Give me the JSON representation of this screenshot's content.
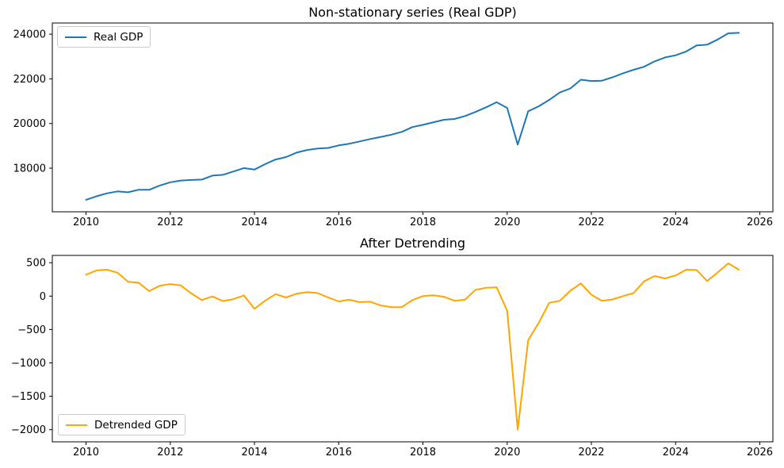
{
  "figure": {
    "background": "#ffffff",
    "axis_color": "#000000",
    "tick_label_color": "#000000"
  },
  "chart_data": [
    {
      "id": "real-gdp",
      "type": "line",
      "title": "Non-stationary series (Real GDP)",
      "legend": {
        "label": "Real GDP",
        "position": "top-left"
      },
      "color": "#1f77b4",
      "x_unit": "year (quarterly points)",
      "x_start": 2010.0,
      "x_step": 0.25,
      "xlim": [
        2009.2,
        2026.31
      ],
      "ylim": [
        16046,
        24500
      ],
      "x_ticks": [
        2010,
        2012,
        2014,
        2016,
        2018,
        2020,
        2022,
        2024,
        2026
      ],
      "y_ticks": [
        18000,
        20000,
        22000,
        24000
      ],
      "grid": false,
      "values": [
        16583,
        16743,
        16872,
        16960,
        16920,
        17035,
        17031,
        17222,
        17367,
        17444,
        17470,
        17489,
        17666,
        17700,
        17850,
        18004,
        17937,
        18178,
        18388,
        18497,
        18697,
        18813,
        18876,
        18906,
        19019,
        19094,
        19197,
        19305,
        19398,
        19499,
        19627,
        19838,
        19938,
        20055,
        20166,
        20201,
        20334,
        20518,
        20725,
        20951,
        20694,
        19056,
        20548,
        20771,
        21058,
        21389,
        21571,
        21960,
        21903,
        21919,
        22066,
        22249,
        22403,
        22539,
        22781,
        22960,
        23054,
        23224,
        23500,
        23530,
        23760,
        24040,
        24060
      ]
    },
    {
      "id": "detrended-gdp",
      "type": "line",
      "title": "After Detrending",
      "legend": {
        "label": "Detrended GDP",
        "position": "bottom-left"
      },
      "color": "#ffa500",
      "x_unit": "year (quarterly points)",
      "x_start": 2010.0,
      "x_step": 0.25,
      "xlim": [
        2009.2,
        2026.31
      ],
      "ylim": [
        -2182,
        609
      ],
      "x_ticks": [
        2010,
        2012,
        2014,
        2016,
        2018,
        2020,
        2022,
        2024,
        2026
      ],
      "y_ticks": [
        500,
        0,
        -500,
        -1000,
        -1500,
        -2000
      ],
      "grid": false,
      "values": [
        320,
        385,
        395,
        350,
        215,
        200,
        75,
        155,
        180,
        160,
        40,
        -60,
        -5,
        -75,
        -45,
        10,
        -190,
        -70,
        30,
        -20,
        35,
        60,
        45,
        -20,
        -80,
        -55,
        -90,
        -85,
        -140,
        -165,
        -165,
        -60,
        0,
        12,
        -10,
        -70,
        -55,
        95,
        125,
        130,
        -220,
        -2000,
        -660,
        -400,
        -100,
        -70,
        80,
        190,
        20,
        -70,
        -50,
        0,
        45,
        220,
        300,
        265,
        310,
        395,
        390,
        225,
        355,
        490,
        395
      ]
    }
  ]
}
